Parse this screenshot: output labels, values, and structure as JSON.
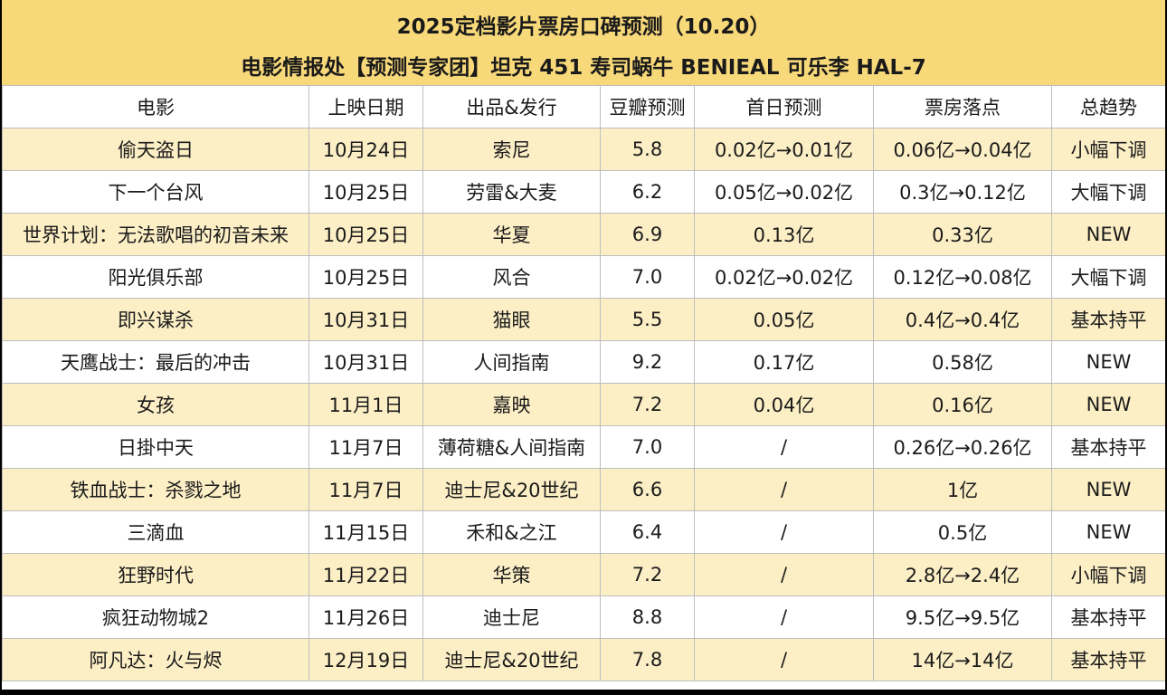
{
  "title": {
    "line1": "2025定档影片票房口碑预测（10.20）",
    "line2": "电影情报处【预测专家团】坦克 451 寿司蜗牛 BENIEAL 可乐李 HAL-7"
  },
  "columns": [
    "电影",
    "上映日期",
    "出品&发行",
    "豆瓣预测",
    "首日预测",
    "票房落点",
    "总趋势"
  ],
  "rows": [
    [
      "偷天盗日",
      "10月24日",
      "索尼",
      "5.8",
      "0.02亿→0.01亿",
      "0.06亿→0.04亿",
      "小幅下调"
    ],
    [
      "下一个台风",
      "10月25日",
      "劳雷&大麦",
      "6.2",
      "0.05亿→0.02亿",
      "0.3亿→0.12亿",
      "大幅下调"
    ],
    [
      "世界计划：无法歌唱的初音未来",
      "10月25日",
      "华夏",
      "6.9",
      "0.13亿",
      "0.33亿",
      "NEW"
    ],
    [
      "阳光俱乐部",
      "10月25日",
      "风合",
      "7.0",
      "0.02亿→0.02亿",
      "0.12亿→0.08亿",
      "大幅下调"
    ],
    [
      "即兴谋杀",
      "10月31日",
      "猫眼",
      "5.5",
      "0.05亿",
      "0.4亿→0.4亿",
      "基本持平"
    ],
    [
      "天鹰战士：最后的冲击",
      "10月31日",
      "人间指南",
      "9.2",
      "0.17亿",
      "0.58亿",
      "NEW"
    ],
    [
      "女孩",
      "11月1日",
      "嘉映",
      "7.2",
      "0.04亿",
      "0.16亿",
      "NEW"
    ],
    [
      "日掛中天",
      "11月7日",
      "薄荷糖&人间指南",
      "7.0",
      "/",
      "0.26亿→0.26亿",
      "基本持平"
    ],
    [
      "铁血战士：杀戮之地",
      "11月7日",
      "迪士尼&20世纪",
      "6.6",
      "/",
      "1亿",
      "NEW"
    ],
    [
      "三滴血",
      "11月15日",
      "禾和&之江",
      "6.4",
      "/",
      "0.5亿",
      "NEW"
    ],
    [
      "狂野时代",
      "11月22日",
      "华策",
      "7.2",
      "/",
      "2.8亿→2.4亿",
      "小幅下调"
    ],
    [
      "疯狂动物城2",
      "11月26日",
      "迪士尼",
      "8.8",
      "/",
      "9.5亿→9.5亿",
      "基本持平"
    ],
    [
      "阿凡达：火与烬",
      "12月19日",
      "迪士尼&20世纪",
      "7.8",
      "/",
      "14亿→14亿",
      "基本持平"
    ]
  ],
  "colors": {
    "title_bg": "#F8D97A",
    "stripe_bg": "#FCEFC6",
    "plain_bg": "#FFFFFF"
  }
}
